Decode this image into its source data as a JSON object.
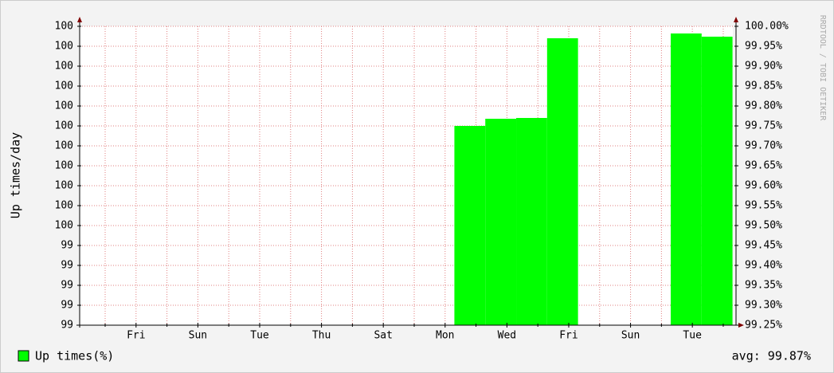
{
  "chart_data": {
    "type": "step-bar",
    "ylabel": "Up times/day",
    "watermark": "RRDTOOL / TOBI OETIKER",
    "legend": "Up times(%)",
    "summary": "avg: 99.87%",
    "xlim": [
      -0.825,
      20.31
    ],
    "xticks": [
      {
        "value": 1,
        "label": "Fri"
      },
      {
        "value": 3,
        "label": "Sun"
      },
      {
        "value": 5,
        "label": "Tue"
      },
      {
        "value": 7,
        "label": "Thu"
      },
      {
        "value": 9,
        "label": "Sat"
      },
      {
        "value": 11,
        "label": "Mon"
      },
      {
        "value": 13,
        "label": "Wed"
      },
      {
        "value": 15,
        "label": "Fri"
      },
      {
        "value": 17,
        "label": "Sun"
      },
      {
        "value": 19,
        "label": "Tue"
      }
    ],
    "xminor": [
      0,
      2,
      4,
      6,
      8,
      10,
      12,
      14,
      16,
      18,
      20
    ],
    "ylim": [
      99.25,
      100
    ],
    "yticks": [
      {
        "value": 99.25,
        "label": "99"
      },
      {
        "value": 99.3,
        "label": "99"
      },
      {
        "value": 99.35,
        "label": "99"
      },
      {
        "value": 99.4,
        "label": "99"
      },
      {
        "value": 99.45,
        "label": "99"
      },
      {
        "value": 99.5,
        "label": "100"
      },
      {
        "value": 99.55,
        "label": "100"
      },
      {
        "value": 99.6,
        "label": "100"
      },
      {
        "value": 99.65,
        "label": "100"
      },
      {
        "value": 99.7,
        "label": "100"
      },
      {
        "value": 99.75,
        "label": "100"
      },
      {
        "value": 99.8,
        "label": "100"
      },
      {
        "value": 99.85,
        "label": "100"
      },
      {
        "value": 99.9,
        "label": "100"
      },
      {
        "value": 99.95,
        "label": "100"
      },
      100
    ],
    "y2lim": [
      99.25,
      100
    ],
    "y2ticks": [
      {
        "value": 99.25,
        "label": "99.25%"
      },
      {
        "value": 99.3,
        "label": "99.30%"
      },
      {
        "value": 99.35,
        "label": "99.35%"
      },
      {
        "value": 99.4,
        "label": "99.40%"
      },
      {
        "value": 99.45,
        "label": "99.45%"
      },
      {
        "value": 99.5,
        "label": "99.50%"
      },
      {
        "value": 99.55,
        "label": "99.55%"
      },
      {
        "value": 99.6,
        "label": "99.60%"
      },
      {
        "value": 99.65,
        "label": "99.65%"
      },
      {
        "value": 99.7,
        "label": "99.70%"
      },
      {
        "value": 99.75,
        "label": "99.75%"
      },
      {
        "value": 99.8,
        "label": "99.80%"
      },
      {
        "value": 99.85,
        "label": "99.85%"
      },
      {
        "value": 99.9,
        "label": "99.90%"
      },
      {
        "value": 99.95,
        "label": "99.95%"
      },
      {
        "value": 100,
        "label": "100.00%"
      }
    ],
    "grid": true,
    "series": [
      {
        "name": "Up times(%)",
        "color": "#00ff00",
        "x": [
          11.3,
          12.3,
          13.3,
          14.3,
          15.3,
          16.3,
          17.3,
          18.3,
          19.3
        ],
        "values": [
          99.75,
          99.768,
          99.77,
          99.97,
          null,
          null,
          null,
          99.982,
          99.974
        ]
      }
    ]
  }
}
